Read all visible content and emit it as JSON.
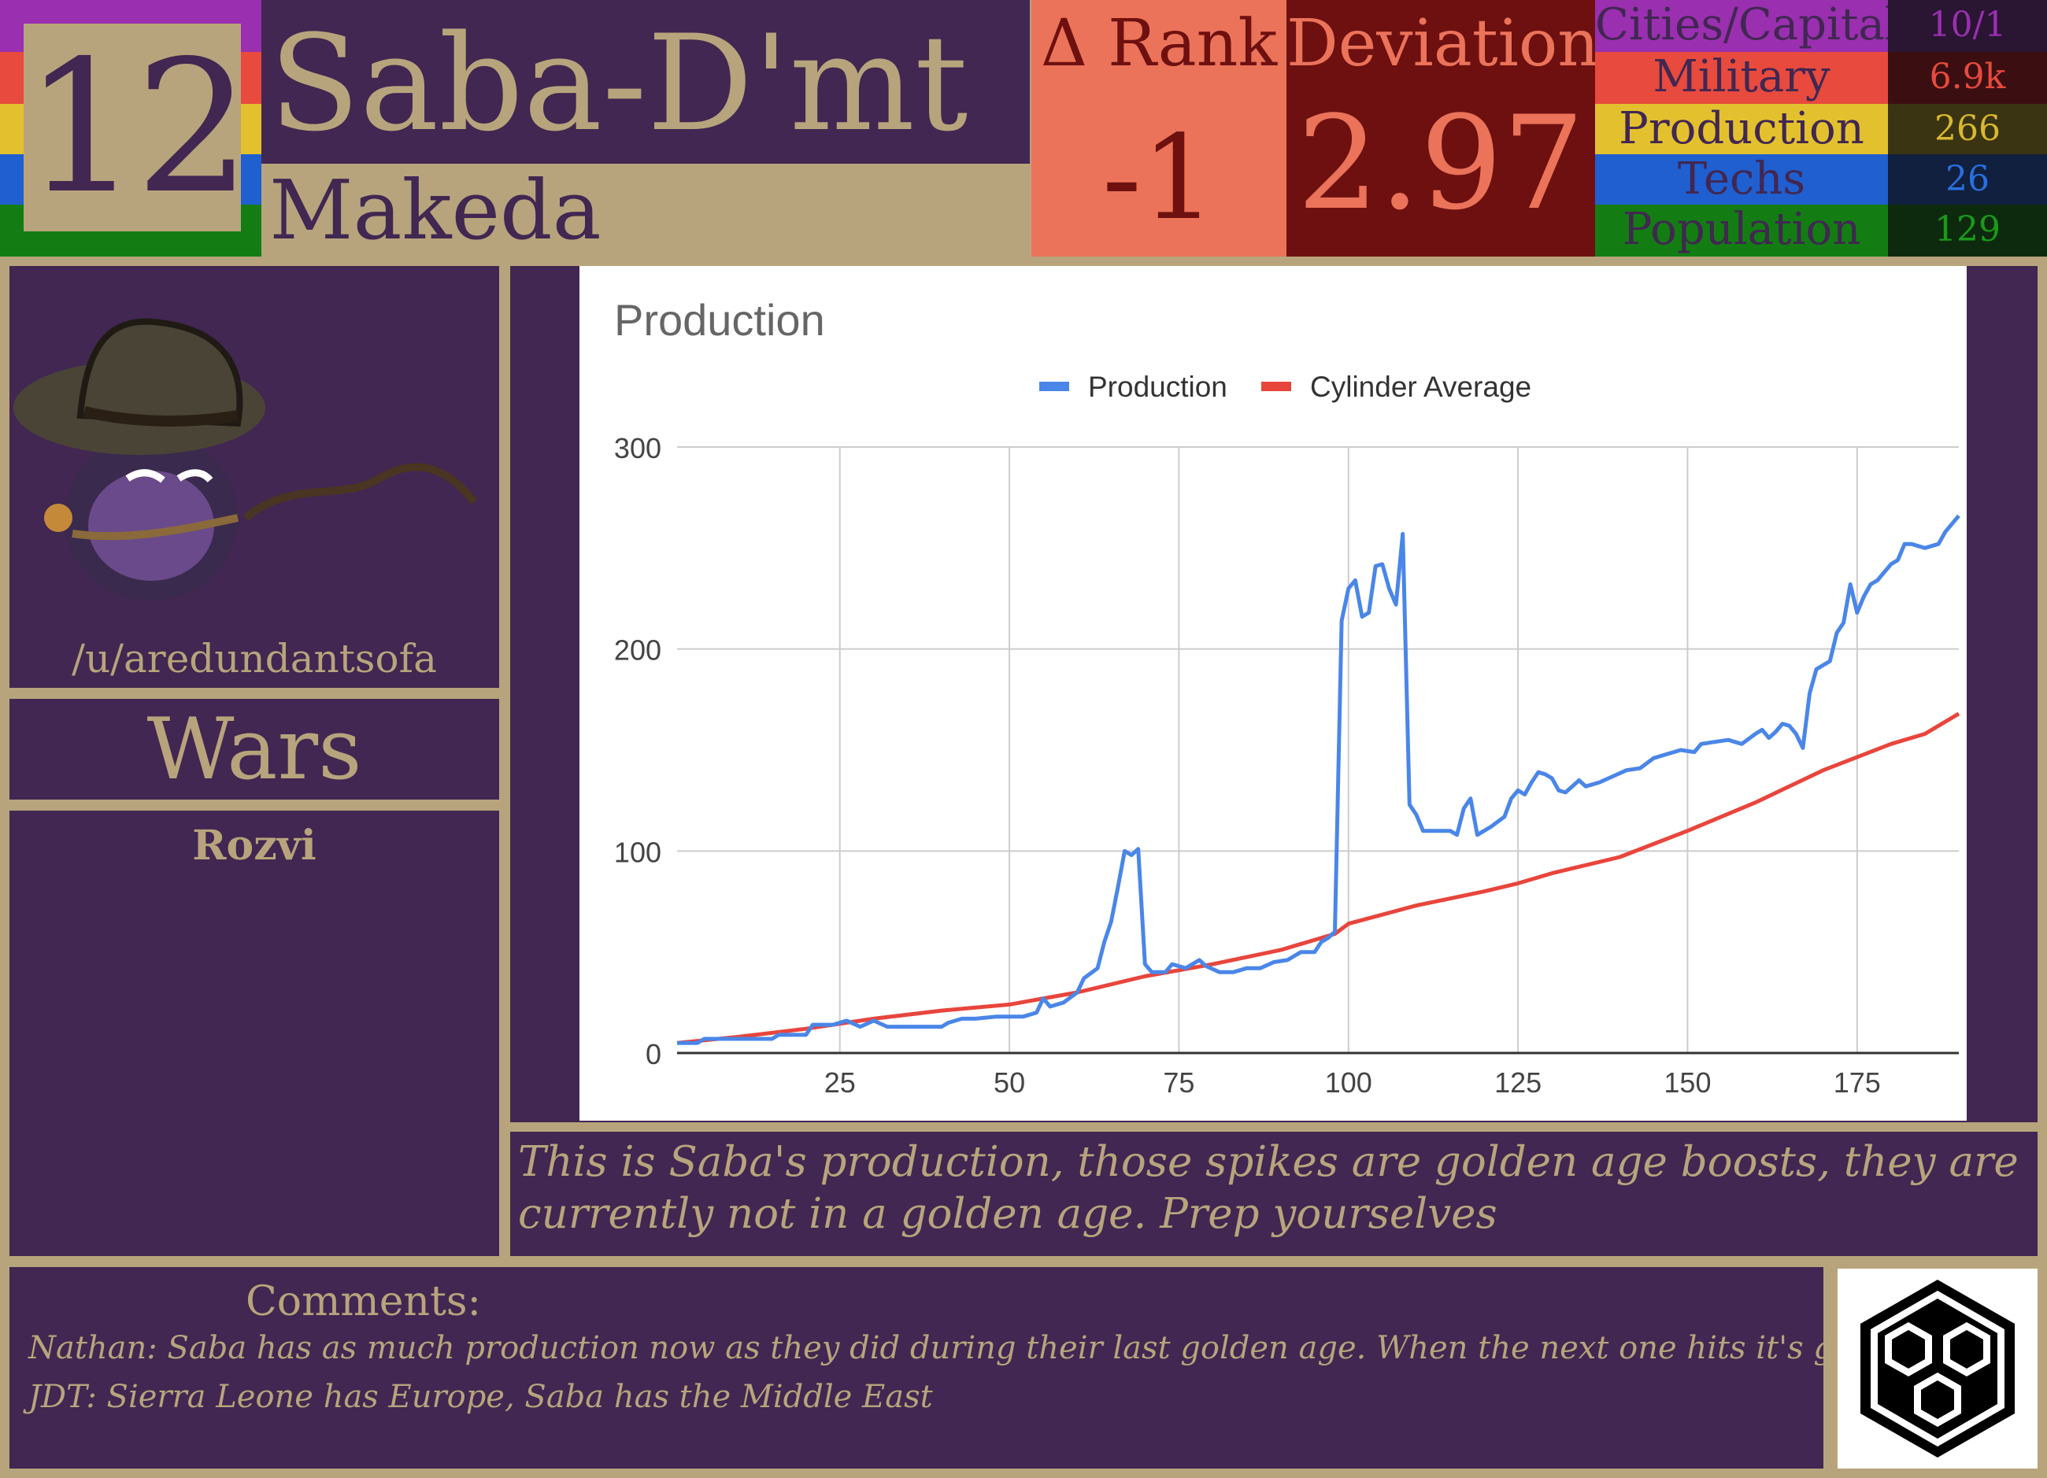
{
  "header": {
    "rank": "12",
    "nation": "Saba-D'mt",
    "leader": "Makeda",
    "delta_rank_label": "Δ Rank",
    "delta_rank_value": "-1",
    "deviation_label": "Deviation",
    "deviation_value": "2.97"
  },
  "stats": [
    {
      "label": "Cities/Capitals",
      "value": "10/1",
      "color": "#9a2fb0",
      "value_color": "#9a2fb0"
    },
    {
      "label": "Military",
      "value": "6.9k",
      "color": "#e84a3e",
      "value_color": "#e84a3e"
    },
    {
      "label": "Production",
      "value": "266",
      "color": "#e3c12e",
      "value_color": "#d8b830"
    },
    {
      "label": "Techs",
      "value": "26",
      "color": "#1f5fd0",
      "value_color": "#2a6fe0"
    },
    {
      "label": "Population",
      "value": "129",
      "color": "#137d13",
      "value_color": "#1a9a1a"
    }
  ],
  "stripe_colors": [
    "#9a2fb0",
    "#e84a3e",
    "#e3c12e",
    "#1f5fd0",
    "#137d13"
  ],
  "player": {
    "username": "/u/aredundantsofa"
  },
  "wars": {
    "title": "Wars",
    "items": [
      "Rozvi"
    ]
  },
  "caption": "This is Saba's production, those spikes are golden age boosts, they are currently not in a golden age. Prep yourselves",
  "comments": {
    "title": "Comments:",
    "items": [
      "Nathan: Saba has as much production now as they did during their last golden age.  When the next one hits it's going to be wild",
      "JDT: Sierra Leone has Europe, Saba has the Middle East"
    ]
  },
  "colors": {
    "panel": "#412751",
    "tan": "#b8a47c",
    "production_line": "#4a86e8",
    "average_line": "#e8453c"
  },
  "chart_data": {
    "type": "line",
    "title": "Production",
    "legend": "top-center",
    "grid": true,
    "xlim": [
      1,
      190
    ],
    "ylim": [
      0,
      300
    ],
    "xticks": [
      25,
      50,
      75,
      100,
      125,
      150,
      175
    ],
    "yticks": [
      0,
      100,
      200,
      300
    ],
    "series": [
      {
        "name": "Production",
        "color": "#4a86e8",
        "points": [
          [
            1,
            5
          ],
          [
            4,
            5
          ],
          [
            5,
            7
          ],
          [
            10,
            7
          ],
          [
            15,
            7
          ],
          [
            16,
            9
          ],
          [
            20,
            9
          ],
          [
            21,
            14
          ],
          [
            24,
            14
          ],
          [
            26,
            16
          ],
          [
            28,
            13
          ],
          [
            30,
            16
          ],
          [
            32,
            13
          ],
          [
            35,
            13
          ],
          [
            38,
            13
          ],
          [
            40,
            13
          ],
          [
            41,
            15
          ],
          [
            43,
            17
          ],
          [
            45,
            17
          ],
          [
            48,
            18
          ],
          [
            52,
            18
          ],
          [
            54,
            20
          ],
          [
            55,
            27
          ],
          [
            56,
            23
          ],
          [
            58,
            25
          ],
          [
            60,
            30
          ],
          [
            61,
            37
          ],
          [
            63,
            42
          ],
          [
            64,
            55
          ],
          [
            65,
            65
          ],
          [
            66,
            82
          ],
          [
            67,
            100
          ],
          [
            68,
            98
          ],
          [
            69,
            101
          ],
          [
            70,
            44
          ],
          [
            71,
            40
          ],
          [
            73,
            40
          ],
          [
            74,
            44
          ],
          [
            76,
            42
          ],
          [
            78,
            46
          ],
          [
            79,
            43
          ],
          [
            81,
            40
          ],
          [
            83,
            40
          ],
          [
            85,
            42
          ],
          [
            87,
            42
          ],
          [
            89,
            45
          ],
          [
            91,
            46
          ],
          [
            93,
            50
          ],
          [
            95,
            50
          ],
          [
            96,
            55
          ],
          [
            97,
            57
          ],
          [
            98,
            60
          ],
          [
            99,
            214
          ],
          [
            100,
            230
          ],
          [
            101,
            234
          ],
          [
            102,
            216
          ],
          [
            103,
            218
          ],
          [
            104,
            241
          ],
          [
            105,
            242
          ],
          [
            106,
            230
          ],
          [
            107,
            222
          ],
          [
            108,
            257
          ],
          [
            109,
            123
          ],
          [
            110,
            118
          ],
          [
            111,
            110
          ],
          [
            113,
            110
          ],
          [
            115,
            110
          ],
          [
            116,
            108
          ],
          [
            117,
            121
          ],
          [
            118,
            126
          ],
          [
            119,
            108
          ],
          [
            121,
            112
          ],
          [
            123,
            117
          ],
          [
            124,
            126
          ],
          [
            125,
            130
          ],
          [
            126,
            128
          ],
          [
            127,
            134
          ],
          [
            128,
            139
          ],
          [
            129,
            138
          ],
          [
            130,
            136
          ],
          [
            131,
            130
          ],
          [
            132,
            129
          ],
          [
            133,
            132
          ],
          [
            134,
            135
          ],
          [
            135,
            132
          ],
          [
            137,
            134
          ],
          [
            139,
            137
          ],
          [
            141,
            140
          ],
          [
            143,
            141
          ],
          [
            145,
            146
          ],
          [
            147,
            148
          ],
          [
            149,
            150
          ],
          [
            151,
            149
          ],
          [
            152,
            153
          ],
          [
            154,
            154
          ],
          [
            156,
            155
          ],
          [
            158,
            153
          ],
          [
            160,
            158
          ],
          [
            161,
            160
          ],
          [
            162,
            156
          ],
          [
            163,
            159
          ],
          [
            164,
            163
          ],
          [
            165,
            162
          ],
          [
            166,
            158
          ],
          [
            167,
            151
          ],
          [
            168,
            178
          ],
          [
            169,
            190
          ],
          [
            170,
            192
          ],
          [
            171,
            194
          ],
          [
            172,
            208
          ],
          [
            173,
            213
          ],
          [
            174,
            232
          ],
          [
            175,
            218
          ],
          [
            176,
            226
          ],
          [
            177,
            232
          ],
          [
            178,
            234
          ],
          [
            179,
            238
          ],
          [
            180,
            242
          ],
          [
            181,
            244
          ],
          [
            182,
            252
          ],
          [
            183,
            252
          ],
          [
            185,
            250
          ],
          [
            187,
            252
          ],
          [
            188,
            258
          ],
          [
            190,
            266
          ]
        ]
      },
      {
        "name": "Cylinder Average",
        "color": "#e8453c",
        "points": [
          [
            1,
            5
          ],
          [
            10,
            8
          ],
          [
            20,
            12
          ],
          [
            30,
            17
          ],
          [
            40,
            21
          ],
          [
            50,
            24
          ],
          [
            60,
            30
          ],
          [
            70,
            38
          ],
          [
            80,
            44
          ],
          [
            90,
            51
          ],
          [
            98,
            59
          ],
          [
            100,
            64
          ],
          [
            110,
            73
          ],
          [
            120,
            80
          ],
          [
            125,
            84
          ],
          [
            130,
            89
          ],
          [
            140,
            97
          ],
          [
            150,
            110
          ],
          [
            160,
            124
          ],
          [
            170,
            140
          ],
          [
            180,
            153
          ],
          [
            185,
            158
          ],
          [
            190,
            168
          ]
        ]
      }
    ]
  }
}
